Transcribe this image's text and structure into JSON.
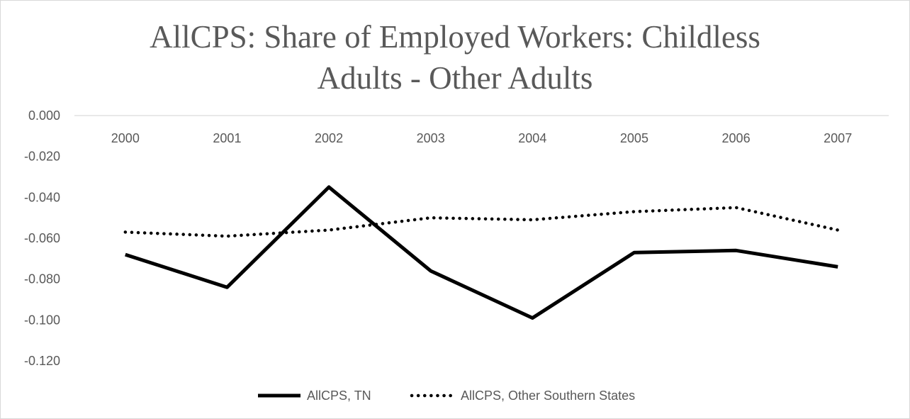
{
  "chart_data": {
    "type": "line",
    "title": [
      "AllCPS: Share of Employed Workers: Childless",
      "Adults - Other Adults"
    ],
    "xlabel": "",
    "ylabel": "",
    "categories": [
      "2000",
      "2001",
      "2002",
      "2003",
      "2004",
      "2005",
      "2006",
      "2007"
    ],
    "series": [
      {
        "name": "AllCPS, TN",
        "values": [
          -0.068,
          -0.084,
          -0.035,
          -0.076,
          -0.099,
          -0.067,
          -0.066,
          -0.074
        ],
        "color": "#000000",
        "style": "solid"
      },
      {
        "name": "AllCPS, Other Southern States",
        "values": [
          -0.057,
          -0.059,
          -0.056,
          -0.05,
          -0.051,
          -0.047,
          -0.045,
          -0.056
        ],
        "color": "#000000",
        "style": "dotted"
      }
    ],
    "ylim": [
      -0.12,
      0.0
    ],
    "yticks": [
      "0.000",
      "-0.020",
      "-0.040",
      "-0.060",
      "-0.080",
      "-0.100",
      "-0.120"
    ],
    "xaxis_position": "top",
    "grid": false,
    "legend": "bottom"
  }
}
